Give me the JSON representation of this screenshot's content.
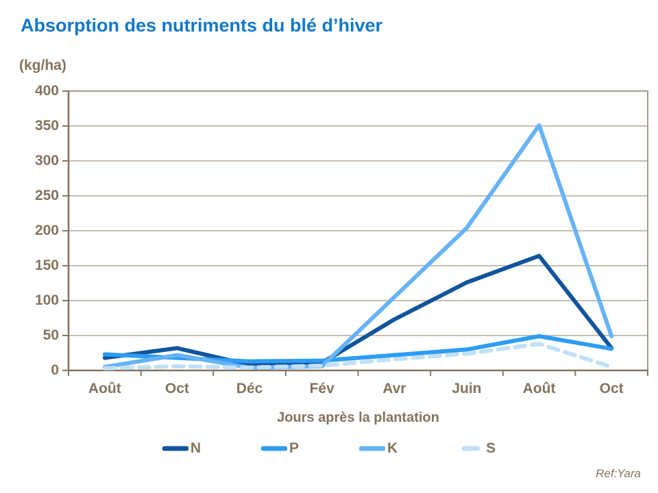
{
  "chart_data": {
    "type": "line",
    "title": "Absorption des nutriments du blé d’hiver",
    "unit_label": "(kg/ha)",
    "xlabel": "Jours après la plantation",
    "ylabel": "(kg/ha)",
    "source": "Ref:Yara",
    "categories": [
      "Août",
      "Oct",
      "Déc",
      "Fév",
      "Avr",
      "Juin",
      "Août",
      "Oct"
    ],
    "y_ticks": [
      0,
      50,
      100,
      150,
      200,
      250,
      300,
      350,
      400
    ],
    "ylim": [
      0,
      400
    ],
    "grid": "horizontal",
    "legend_position": "bottom",
    "series": [
      {
        "name": "N",
        "color": "#10559C",
        "dashed": false,
        "values": [
          18,
          32,
          8,
          11,
          73,
          126,
          164,
          32
        ]
      },
      {
        "name": "P",
        "color": "#2D9CF4",
        "dashed": false,
        "values": [
          23,
          18,
          13,
          14,
          22,
          30,
          49,
          31
        ]
      },
      {
        "name": "K",
        "color": "#66B3F6",
        "dashed": false,
        "values": [
          5,
          22,
          4,
          6,
          105,
          204,
          351,
          49
        ]
      },
      {
        "name": "S",
        "color": "#BFE0F8",
        "dashed": true,
        "values": [
          3,
          6,
          4,
          7,
          16,
          24,
          38,
          5
        ]
      }
    ]
  },
  "colors": {
    "title_blue": "#1478C8",
    "text_brown": "#85735C",
    "gridline": "#B3A99B",
    "axis": "#84755E",
    "border": "#A39A8B",
    "background": "#FFFFFF"
  }
}
